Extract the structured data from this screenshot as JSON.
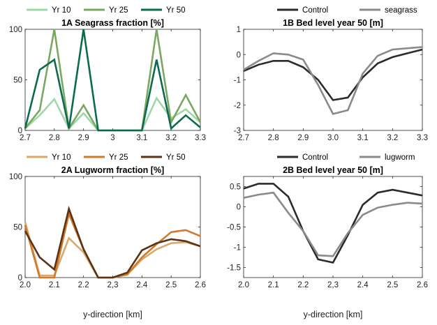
{
  "chart_data": [
    {
      "id": "1A",
      "type": "line",
      "title": "1A Seagrass fraction [%]",
      "xlabel": "",
      "ylabel": "",
      "xlim": [
        2.7,
        3.3
      ],
      "ylim": [
        0,
        100
      ],
      "xticks": [
        2.7,
        2.8,
        2.9,
        3,
        3.1,
        3.2,
        3.3
      ],
      "xtick_labels": [
        "2.7",
        "2.8",
        "2.9",
        "3",
        "3.1",
        "3.2",
        "3.3"
      ],
      "yticks": [
        0,
        50,
        100
      ],
      "ytick_labels": [
        "0",
        "50",
        "100"
      ],
      "legend_position": "top",
      "x": [
        2.7,
        2.75,
        2.8,
        2.85,
        2.9,
        2.95,
        3.0,
        3.05,
        3.1,
        3.15,
        3.2,
        3.25,
        3.3
      ],
      "series": [
        {
          "name": "Yr 10",
          "color": "#9fd8a8",
          "values": [
            2,
            15,
            31,
            2,
            17,
            0,
            0,
            0,
            0,
            32,
            12,
            21,
            8
          ]
        },
        {
          "name": "Yr 25",
          "color": "#7aa862",
          "values": [
            2,
            20,
            100,
            2,
            25,
            0,
            0,
            0,
            0,
            100,
            8,
            35,
            8
          ]
        },
        {
          "name": "Yr 50",
          "color": "#0b6b4f",
          "values": [
            2,
            60,
            70,
            2,
            100,
            0,
            0,
            0,
            0,
            70,
            2,
            15,
            3
          ]
        }
      ]
    },
    {
      "id": "1B",
      "type": "line",
      "title": "1B Bed level year 50 [m]",
      "xlabel": "",
      "ylabel": "",
      "xlim": [
        2.7,
        3.3
      ],
      "ylim": [
        -3,
        1
      ],
      "xticks": [
        2.7,
        2.8,
        2.9,
        3.0,
        3.1,
        3.2,
        3.3
      ],
      "xtick_labels": [
        "2.7",
        "2.8",
        "2.9",
        "3.0",
        "3.1",
        "3.2",
        "3.3"
      ],
      "yticks": [
        -3,
        -2,
        -1,
        0,
        1
      ],
      "ytick_labels": [
        "-3",
        "-2",
        "-1",
        "0",
        "1"
      ],
      "legend_position": "top",
      "x": [
        2.7,
        2.75,
        2.8,
        2.85,
        2.9,
        2.95,
        3.0,
        3.05,
        3.1,
        3.15,
        3.2,
        3.25,
        3.3
      ],
      "series": [
        {
          "name": "Control",
          "color": "#2b2b2b",
          "values": [
            -0.65,
            -0.4,
            -0.25,
            -0.25,
            -0.5,
            -1.0,
            -1.8,
            -1.7,
            -0.9,
            -0.35,
            -0.1,
            0.05,
            0.2
          ]
        },
        {
          "name": "seagrass",
          "color": "#8a8a8a",
          "values": [
            -0.6,
            -0.25,
            0.05,
            0.0,
            -0.2,
            -1.2,
            -2.35,
            -2.2,
            -0.75,
            -0.05,
            0.2,
            0.25,
            0.3
          ]
        }
      ]
    },
    {
      "id": "2A",
      "type": "line",
      "title": "2A Lugworm fraction [%]",
      "xlabel": "y-direction [km]",
      "ylabel": "",
      "xlim": [
        2.0,
        2.6
      ],
      "ylim": [
        0,
        100
      ],
      "xticks": [
        2.0,
        2.1,
        2.2,
        2.3,
        2.4,
        2.5,
        2.6
      ],
      "xtick_labels": [
        "2.0",
        "2.1",
        "2.2",
        "2,3",
        "2.4",
        "2.5",
        "2.6"
      ],
      "yticks": [
        0,
        50,
        100
      ],
      "ytick_labels": [
        "0",
        "50",
        "100"
      ],
      "legend_position": "top",
      "x": [
        2.0,
        2.05,
        2.1,
        2.15,
        2.2,
        2.25,
        2.3,
        2.35,
        2.4,
        2.45,
        2.5,
        2.55,
        2.6
      ],
      "series": [
        {
          "name": "Yr 10",
          "color": "#d9a96a",
          "values": [
            55,
            2,
            2,
            39,
            25,
            0,
            0,
            3,
            18,
            28,
            34,
            35,
            31
          ]
        },
        {
          "name": "Yr 25",
          "color": "#d2792a",
          "values": [
            52,
            0,
            0,
            63,
            28,
            0,
            0,
            3,
            20,
            33,
            45,
            47,
            41
          ]
        },
        {
          "name": "Yr 50",
          "color": "#5a3216",
          "values": [
            46,
            20,
            8,
            68,
            28,
            0,
            0,
            5,
            27,
            34,
            38,
            36,
            31
          ]
        }
      ]
    },
    {
      "id": "2B",
      "type": "line",
      "title": "2B Bed level year 50 [m]",
      "xlabel": "y-direction [km]",
      "ylabel": "",
      "xlim": [
        2.0,
        2.6
      ],
      "ylim": [
        -1.75,
        0.75
      ],
      "xticks": [
        2.0,
        2.1,
        2.2,
        2.3,
        2.4,
        2.5,
        2.6
      ],
      "xtick_labels": [
        "2.0",
        "2.1",
        "2.2",
        "2,3",
        "2.4",
        "2.5",
        "2.6"
      ],
      "yticks": [
        -1.5,
        -1,
        -0.5,
        0,
        0.5
      ],
      "ytick_labels": [
        "-1.5",
        "-1",
        "-0.5",
        "0",
        "0.5"
      ],
      "legend_position": "top",
      "x": [
        2.0,
        2.05,
        2.1,
        2.15,
        2.2,
        2.25,
        2.3,
        2.35,
        2.4,
        2.45,
        2.5,
        2.55,
        2.6
      ],
      "series": [
        {
          "name": "Control",
          "color": "#2b2b2b",
          "values": [
            0.45,
            0.57,
            0.57,
            0.25,
            -0.6,
            -1.3,
            -1.38,
            -0.7,
            0.05,
            0.35,
            0.42,
            0.35,
            0.28
          ]
        },
        {
          "name": "lugworm",
          "color": "#8a8a8a",
          "values": [
            0.22,
            0.3,
            0.35,
            -0.15,
            -0.6,
            -1.2,
            -1.22,
            -0.65,
            -0.2,
            -0.02,
            0.05,
            0.1,
            0.08
          ]
        }
      ]
    }
  ]
}
